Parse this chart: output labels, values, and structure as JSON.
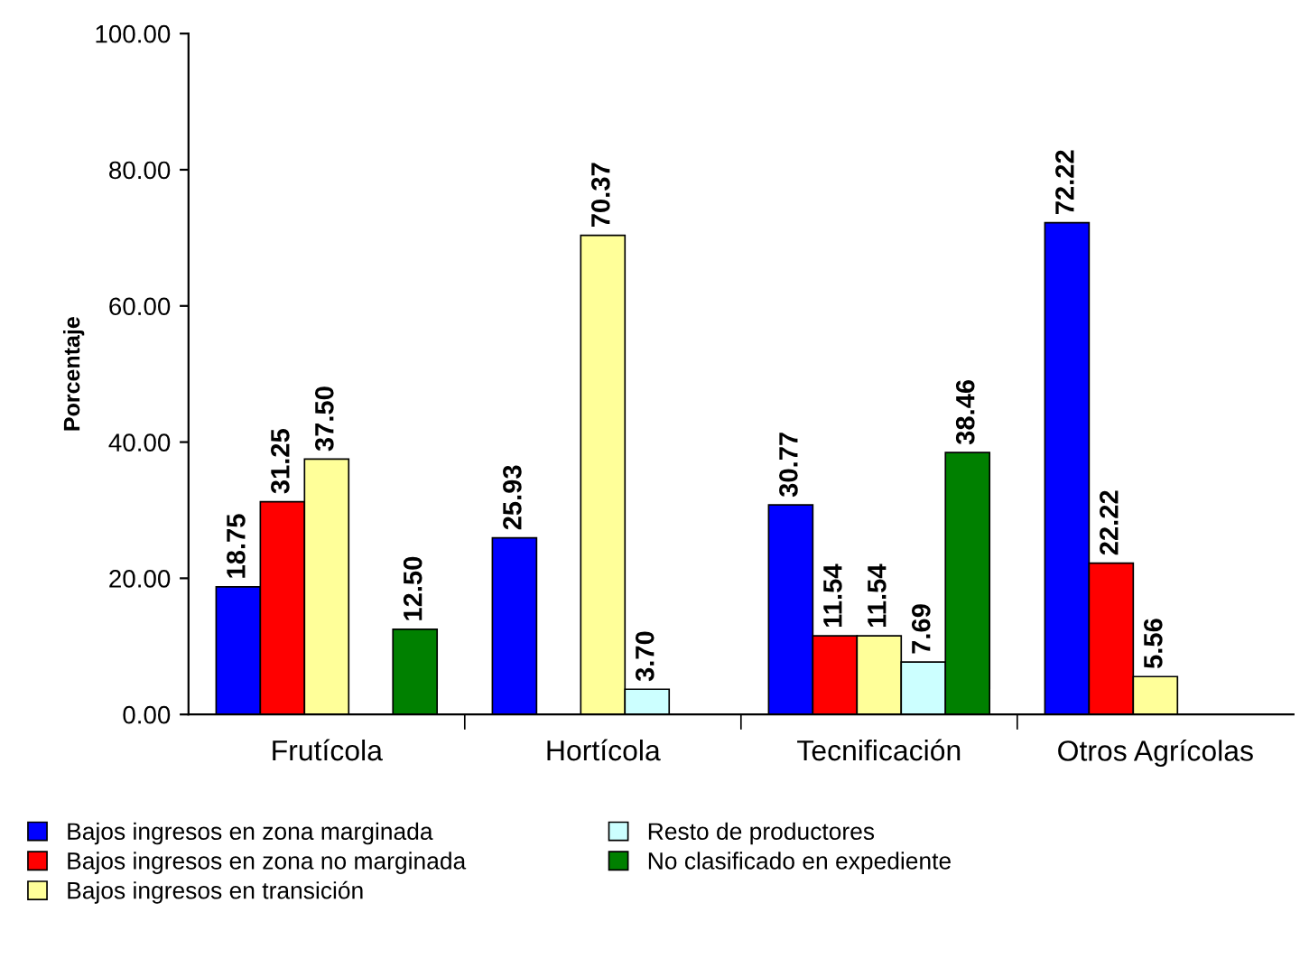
{
  "chart_data": {
    "type": "bar",
    "ylabel": "Porcentaje",
    "categories": [
      "Frutícola",
      "Hortícola",
      "Tecnificación",
      "Otros Agrícolas"
    ],
    "series": [
      {
        "name": "Bajos ingresos en zona marginada",
        "color": "#0000ff",
        "values": [
          18.75,
          25.93,
          30.77,
          72.22
        ],
        "value_labels": [
          "18.75",
          "25.93",
          "30.77",
          "72.22"
        ]
      },
      {
        "name": "Bajos ingresos en zona no marginada",
        "color": "#ff0000",
        "values": [
          31.25,
          null,
          11.54,
          22.22
        ],
        "value_labels": [
          "31.25",
          null,
          "11.54",
          "22.22"
        ]
      },
      {
        "name": "Bajos ingresos en transición",
        "color": "#ffff99",
        "values": [
          37.5,
          70.37,
          11.54,
          5.56
        ],
        "value_labels": [
          "37.50",
          "70.37",
          "11.54",
          "5.56"
        ]
      },
      {
        "name": "Resto de productores",
        "color": "#ccffff",
        "values": [
          null,
          3.7,
          7.69,
          null
        ],
        "value_labels": [
          null,
          "3.70",
          "7.69",
          null
        ]
      },
      {
        "name": "No clasificado en expediente",
        "color": "#008000",
        "values": [
          12.5,
          null,
          38.46,
          null
        ],
        "value_labels": [
          "12.50",
          null,
          "38.46",
          null
        ]
      }
    ],
    "ylim": [
      0,
      100
    ],
    "yticks": [
      {
        "value": 0,
        "label": "0.00"
      },
      {
        "value": 20,
        "label": "20.00"
      },
      {
        "value": 40,
        "label": "40.00"
      },
      {
        "value": 60,
        "label": "60.00"
      },
      {
        "value": 80,
        "label": "80.00"
      },
      {
        "value": 100,
        "label": "100.00"
      }
    ],
    "grid": false,
    "legend": "bottom"
  }
}
